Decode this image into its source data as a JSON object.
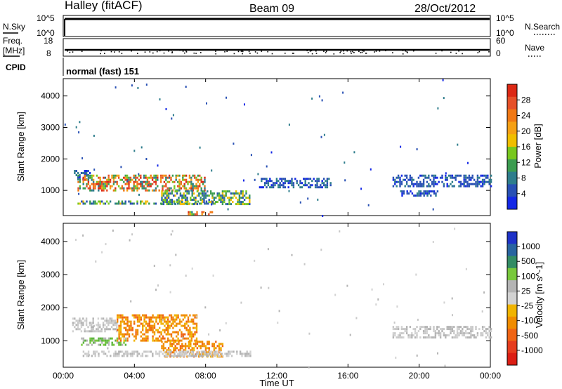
{
  "header": {
    "station": "Halley (fitACF)",
    "beam": "Beam 09",
    "date": "28/Oct/2012"
  },
  "nsky_panel": {
    "left_label": "N.Sky",
    "right_label": "N.Search",
    "left_ticks": [
      "10^5",
      "10^0"
    ],
    "right_ticks": [
      "10^5",
      "10^0"
    ],
    "right_legend_style": "dotted"
  },
  "freq_panel": {
    "left_label_line1": "Freq.",
    "left_label_line2": "[MHz]",
    "right_label": "Nave",
    "left_ticks": [
      "18",
      "8"
    ],
    "right_ticks": [
      "60",
      "0"
    ],
    "right_legend_style": "dotted"
  },
  "cpid_panel": {
    "label": "CPID",
    "mode_text": "normal (fast) 151"
  },
  "chart_data": [
    {
      "type": "heatmap",
      "title": "",
      "xlabel": "",
      "ylabel": "Slant Range [km]",
      "y_ticks": [
        "1000",
        "2000",
        "3000",
        "4000"
      ],
      "ylim": [
        200,
        4550
      ],
      "colorbar_label": "Power [dB]",
      "colorbar_ticks": [
        "4",
        "8",
        "12",
        "16",
        "20",
        "24",
        "28"
      ],
      "colorbar_colors": [
        "#1428e6",
        "#2850b4",
        "#2e7d8c",
        "#3c9c50",
        "#78c81e",
        "#f0be00",
        "#f5a014",
        "#f07814",
        "#e65028",
        "#dc2814"
      ],
      "echo_regions": [
        {
          "t": [
            0.6,
            1.5
          ],
          "r": [
            1350,
            1650
          ],
          "kind": "low"
        },
        {
          "t": [
            0.8,
            8.0
          ],
          "r": [
            1000,
            1500
          ],
          "kind": "high"
        },
        {
          "t": [
            0.8,
            8.5
          ],
          "r": [
            550,
            680
          ],
          "kind": "mid"
        },
        {
          "t": [
            5.5,
            10.5
          ],
          "r": [
            580,
            1000
          ],
          "kind": "mid"
        },
        {
          "t": [
            7.0,
            8.5
          ],
          "r": [
            220,
            340
          ],
          "kind": "high"
        },
        {
          "t": [
            11.0,
            15.0
          ],
          "r": [
            1100,
            1400
          ],
          "kind": "low"
        },
        {
          "t": [
            18.5,
            24.0
          ],
          "r": [
            1100,
            1500
          ],
          "kind": "low"
        },
        {
          "t": [
            19.0,
            21.0
          ],
          "r": [
            800,
            1000
          ],
          "kind": "low"
        }
      ]
    },
    {
      "type": "heatmap",
      "title": "",
      "xlabel": "Time UT",
      "ylabel": "Slant Range [km]",
      "x_ticks": [
        "00:00",
        "04:00",
        "08:00",
        "12:00",
        "16:00",
        "20:00",
        "00:00"
      ],
      "xlim": [
        0,
        24
      ],
      "y_ticks": [
        "1000",
        "2000",
        "3000",
        "4000"
      ],
      "ylim": [
        200,
        4550
      ],
      "colorbar_label": "Velocity [m s^-1]",
      "colorbar_ticks": [
        "1000",
        "500",
        "100",
        "25",
        "-25",
        "-100",
        "-500",
        "-1000"
      ],
      "colorbar_colors": [
        "#1e32c8",
        "#2864a0",
        "#328c64",
        "#78c83c",
        "#b4b4b4",
        "#d2d2d2",
        "#f0b400",
        "#f08c00",
        "#f06414",
        "#e63c1e",
        "#dc1e14"
      ],
      "echo_regions": [
        {
          "t": [
            0.5,
            3.0
          ],
          "r": [
            1300,
            1700
          ],
          "kind": "grey"
        },
        {
          "t": [
            1.0,
            3.5
          ],
          "r": [
            900,
            1100
          ],
          "kind": "green"
        },
        {
          "t": [
            3.0,
            7.5
          ],
          "r": [
            1000,
            1800
          ],
          "kind": "orange"
        },
        {
          "t": [
            5.5,
            9.0
          ],
          "r": [
            500,
            1000
          ],
          "kind": "orange"
        },
        {
          "t": [
            1.0,
            10.5
          ],
          "r": [
            550,
            700
          ],
          "kind": "grey"
        },
        {
          "t": [
            18.5,
            24.0
          ],
          "r": [
            1100,
            1450
          ],
          "kind": "grey"
        }
      ]
    }
  ]
}
